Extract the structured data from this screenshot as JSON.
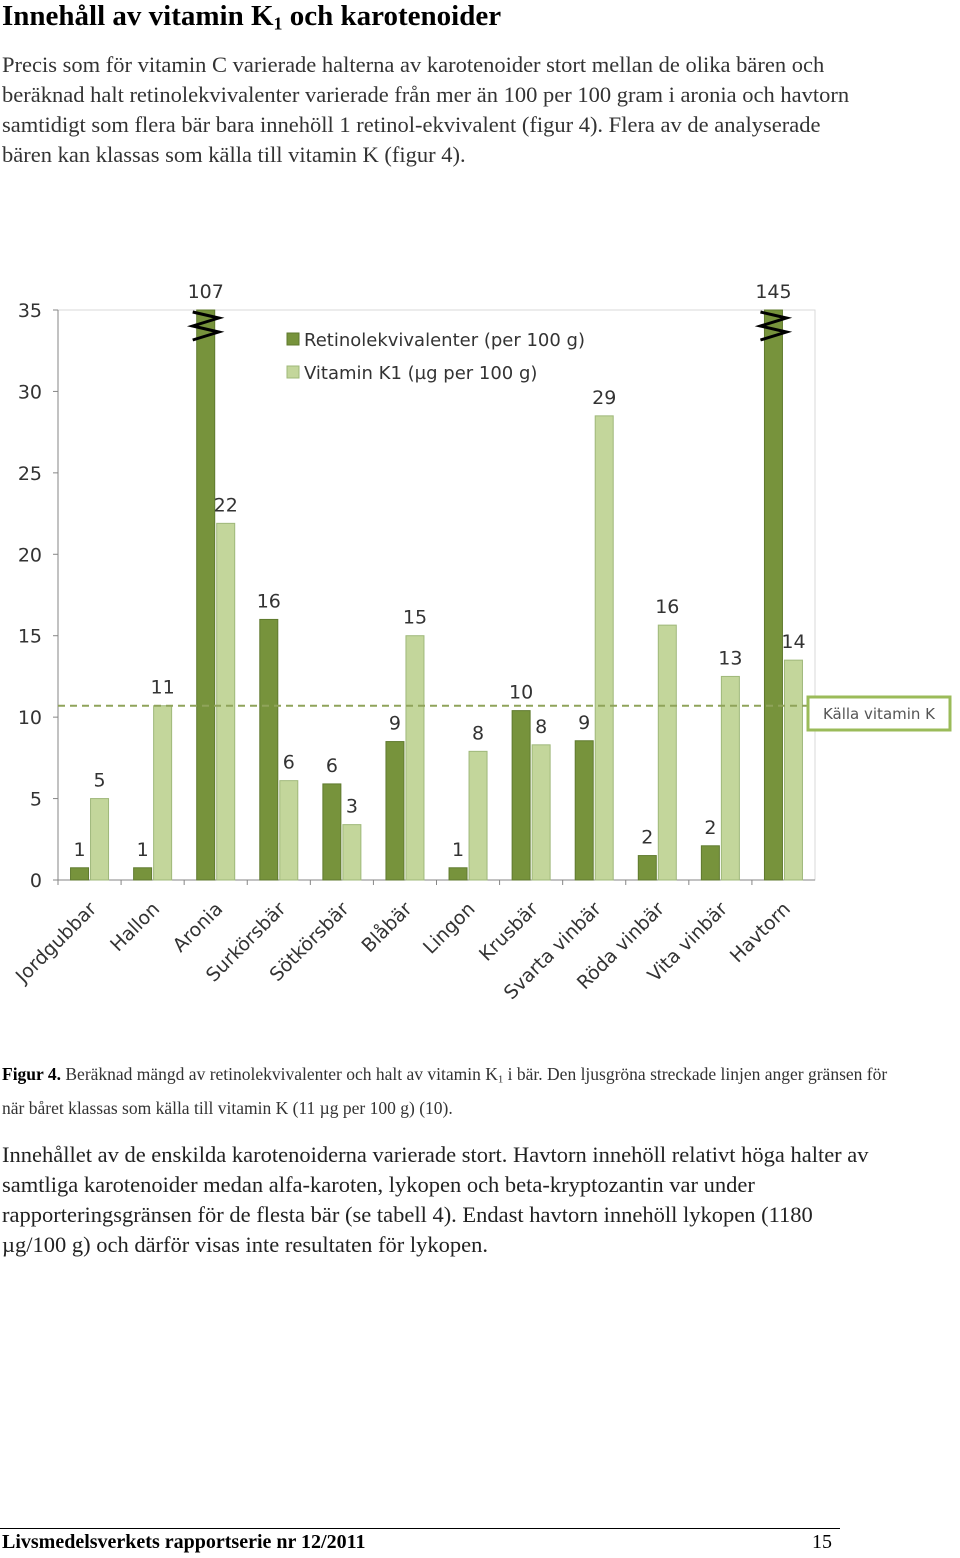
{
  "heading": {
    "text": "Innehåll av vitamin K",
    "subscript": "1",
    "text_after": " och karotenoider"
  },
  "paragraph_1": "Precis som för vitamin C varierade halterna av karotenoider stort mellan de olika bären och beräknad halt retinolekvivalenter varierade från mer än 100 per 100 gram i aronia och havtorn samtidigt som flera bär bara innehöll 1 retinol-ekvivalent (figur 4). Flera av de analyserade bären kan klassas som källa till vitamin K (figur 4).",
  "chart_data": {
    "type": "bar",
    "categories": [
      "Jordgubbar",
      "Hallon",
      "Aronia",
      "Surkörsbär",
      "Sötkörsbär",
      "Blåbär",
      "Lingon",
      "Krusbär",
      "Svarta vinbär",
      "Röda vinbär",
      "Vita vinbär",
      "Havtorn"
    ],
    "series": [
      {
        "name": "Retinolekvivalenter (per 100 g)",
        "color": "#77933c",
        "values": [
          0.75,
          0.75,
          107,
          16,
          5.9,
          8.5,
          0.75,
          10.4,
          8.55,
          1.5,
          2.1,
          145
        ],
        "value_labels": [
          "1",
          "1",
          "107",
          "16",
          "6",
          "9",
          "1",
          "10",
          "9",
          "2",
          "2",
          "145"
        ]
      },
      {
        "name": "Vitamin K1 (µg per 100 g)",
        "color": "#c3d69b",
        "values": [
          5,
          10.7,
          21.9,
          6.1,
          3.4,
          15,
          7.9,
          8.3,
          28.5,
          15.65,
          12.5,
          13.5
        ],
        "value_labels": [
          "5",
          "11",
          "22",
          "6",
          "3",
          "15",
          "8",
          "8",
          "29",
          "16",
          "13",
          "14"
        ]
      }
    ],
    "ylim": [
      0,
      35
    ],
    "yticks": [
      0,
      5,
      10,
      15,
      20,
      25,
      30,
      35
    ],
    "reference_line": {
      "value": 10.7,
      "label": "Källa vitamin K",
      "color": "#9bbb59"
    },
    "grid": false
  },
  "caption": {
    "label": "Figur 4.",
    "text": " Beräknad mängd av retinolekvivalenter och halt av vitamin K",
    "subscript": "1",
    "text_after": " i bär. Den ljusgröna streckade linjen anger gränsen för när båret klassas som källa till vitamin K (11 µg per 100 g) (10)."
  },
  "paragraph_2": "Innehållet av de enskilda karotenoiderna varierade stort. Havtorn innehöll relativt höga halter av samtliga karotenoider medan alfa-karoten, lykopen och beta-kryptozantin var under rapporteringsgränsen för de flesta bär (se tabell 4). Endast havtorn innehöll lykopen (1180 µg/100 g) och därför visas inte resultaten för lykopen.",
  "footer": {
    "series": "Livsmedelsverkets rapportserie nr 12/2011",
    "page": "15"
  }
}
